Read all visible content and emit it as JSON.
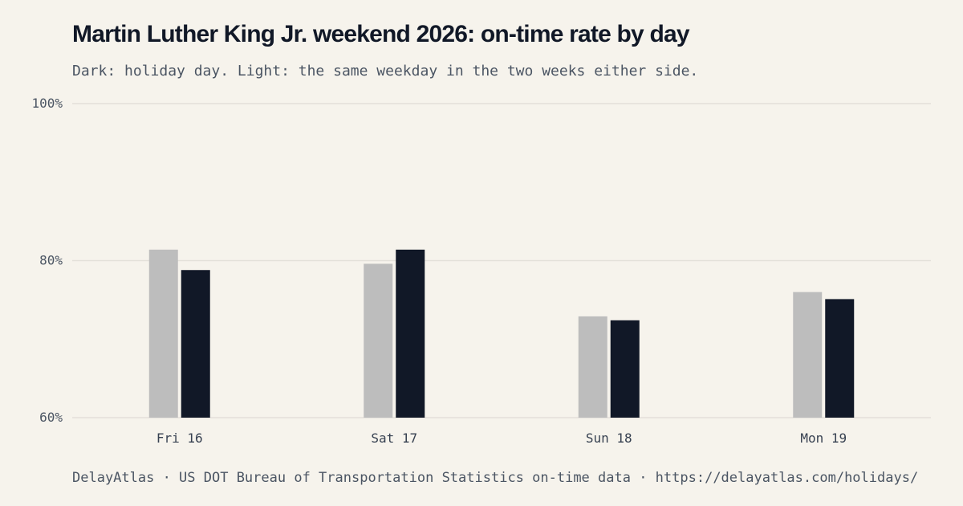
{
  "colors": {
    "background": "#f6f3ec",
    "holiday": "#111827",
    "comparison": "#bdbdbd",
    "grid": "#e3e0d9",
    "axis_text": "#4b5563"
  },
  "header": {
    "title": "Martin Luther King Jr. weekend 2026: on-time rate by day",
    "subtitle": "Dark: holiday day. Light: the same weekday in the two weeks either side."
  },
  "footer": {
    "text": "DelayAtlas · US DOT Bureau of Transportation Statistics on-time data · https://delayatlas.com/holidays/"
  },
  "chart_data": {
    "type": "bar",
    "title": "Martin Luther King Jr. weekend 2026: on-time rate by day",
    "subtitle": "Dark: holiday day. Light: the same weekday in the two weeks either side.",
    "xlabel": "",
    "ylabel": "",
    "categories": [
      "Fri 16",
      "Sat 17",
      "Sun 18",
      "Mon 19"
    ],
    "series": [
      {
        "values": [
          81.4,
          79.6,
          72.9,
          76.0
        ],
        "color": "#bdbdbd"
      },
      {
        "values": [
          78.8,
          81.4,
          72.4,
          75.1
        ],
        "color": "#111827"
      }
    ],
    "ylim": [
      60,
      100
    ],
    "yticks": [
      60,
      80,
      100
    ],
    "ytick_labels": [
      "60%",
      "80%",
      "100%"
    ],
    "grid": true,
    "legend": "none"
  }
}
